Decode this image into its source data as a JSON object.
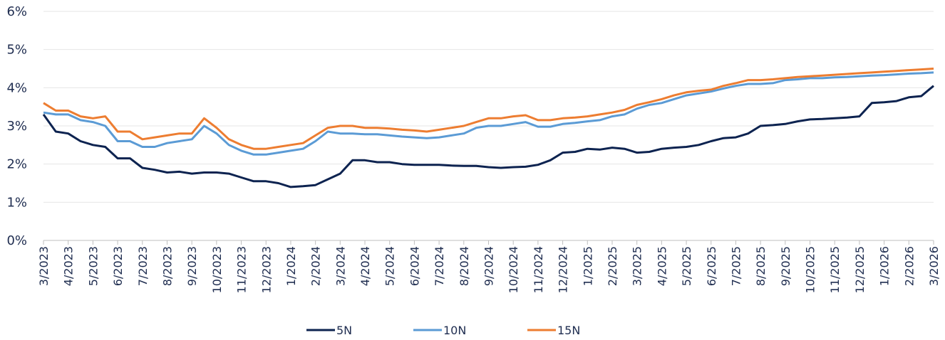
{
  "chart_data": {
    "type": "line",
    "categories": [
      "3/2023",
      null,
      "4/2023",
      null,
      "5/2023",
      null,
      "6/2023",
      null,
      "7/2023",
      null,
      "8/2023",
      null,
      "9/2023",
      null,
      "10/2023",
      null,
      "11/2023",
      null,
      "12/2023",
      null,
      "1/2024",
      null,
      "2/2024",
      null,
      "3/2024",
      null,
      "4/2024",
      null,
      "5/2024",
      null,
      "6/2024",
      null,
      "7/2024",
      null,
      "8/2024",
      null,
      "9/2024",
      null,
      "10/2024",
      null,
      "11/2024",
      null,
      "12/2024",
      null,
      "1/2025",
      null,
      "2/2025",
      null,
      "3/2025",
      null,
      "4/2025",
      null,
      "5/2025",
      null,
      "6/2025",
      null,
      "7/2025",
      null,
      "8/2025",
      null,
      "9/2025",
      null,
      "10/2025",
      null,
      "11/2025",
      null,
      "12/2025",
      null,
      "1/2026",
      null,
      "2/2026",
      null,
      "3/2026"
    ],
    "series": [
      {
        "name": "5N",
        "color": "#0d2350",
        "values": [
          3.3,
          2.85,
          2.8,
          2.6,
          2.5,
          2.45,
          2.15,
          2.15,
          1.9,
          1.85,
          1.78,
          1.8,
          1.75,
          1.78,
          1.78,
          1.75,
          1.65,
          1.55,
          1.55,
          1.5,
          1.4,
          1.42,
          1.45,
          1.6,
          1.75,
          2.1,
          2.1,
          2.05,
          2.05,
          2.0,
          1.98,
          1.98,
          1.98,
          1.96,
          1.95,
          1.95,
          1.92,
          1.9,
          1.92,
          1.93,
          1.98,
          2.1,
          2.3,
          2.32,
          2.4,
          2.38,
          2.43,
          2.4,
          2.3,
          2.32,
          2.4,
          2.43,
          2.45,
          2.5,
          2.6,
          2.68,
          2.7,
          2.8,
          3.0,
          3.02,
          3.05,
          3.12,
          3.17,
          3.18,
          3.2,
          3.22,
          3.25,
          3.6,
          3.62,
          3.65,
          3.75,
          3.78,
          4.05
        ]
      },
      {
        "name": "10N",
        "color": "#5b9bd5",
        "values": [
          3.35,
          3.3,
          3.3,
          3.15,
          3.1,
          3.0,
          2.6,
          2.6,
          2.45,
          2.45,
          2.55,
          2.6,
          2.65,
          3.0,
          2.8,
          2.5,
          2.35,
          2.25,
          2.25,
          2.3,
          2.35,
          2.4,
          2.6,
          2.85,
          2.8,
          2.8,
          2.78,
          2.78,
          2.75,
          2.72,
          2.7,
          2.68,
          2.7,
          2.75,
          2.8,
          2.95,
          3.0,
          3.0,
          3.05,
          3.1,
          2.98,
          2.98,
          3.05,
          3.08,
          3.12,
          3.15,
          3.25,
          3.3,
          3.45,
          3.55,
          3.6,
          3.7,
          3.8,
          3.85,
          3.9,
          3.98,
          4.05,
          4.1,
          4.1,
          4.12,
          4.2,
          4.22,
          4.25,
          4.25,
          4.27,
          4.28,
          4.3,
          4.32,
          4.33,
          4.35,
          4.37,
          4.38,
          4.4
        ]
      },
      {
        "name": "15N",
        "color": "#ed7d31",
        "values": [
          3.6,
          3.4,
          3.4,
          3.25,
          3.2,
          3.25,
          2.85,
          2.85,
          2.65,
          2.7,
          2.75,
          2.8,
          2.8,
          3.2,
          2.95,
          2.65,
          2.5,
          2.4,
          2.4,
          2.45,
          2.5,
          2.55,
          2.75,
          2.95,
          3.0,
          3.0,
          2.95,
          2.95,
          2.93,
          2.9,
          2.88,
          2.85,
          2.9,
          2.95,
          3.0,
          3.1,
          3.2,
          3.2,
          3.25,
          3.28,
          3.15,
          3.15,
          3.2,
          3.22,
          3.25,
          3.3,
          3.35,
          3.42,
          3.55,
          3.62,
          3.7,
          3.8,
          3.88,
          3.92,
          3.95,
          4.05,
          4.12,
          4.2,
          4.2,
          4.22,
          4.25,
          4.28,
          4.3,
          4.32,
          4.34,
          4.36,
          4.38,
          4.4,
          4.42,
          4.44,
          4.46,
          4.48,
          4.5
        ]
      }
    ],
    "ylim": [
      0,
      6
    ],
    "yticks": [
      {
        "value": 0,
        "label": "0%"
      },
      {
        "value": 1,
        "label": "1%"
      },
      {
        "value": 2,
        "label": "2%"
      },
      {
        "value": 3,
        "label": "3%"
      },
      {
        "value": 4,
        "label": "4%"
      },
      {
        "value": 5,
        "label": "5%"
      },
      {
        "value": 6,
        "label": "6%"
      }
    ],
    "grid": true,
    "legend": "bottom"
  }
}
